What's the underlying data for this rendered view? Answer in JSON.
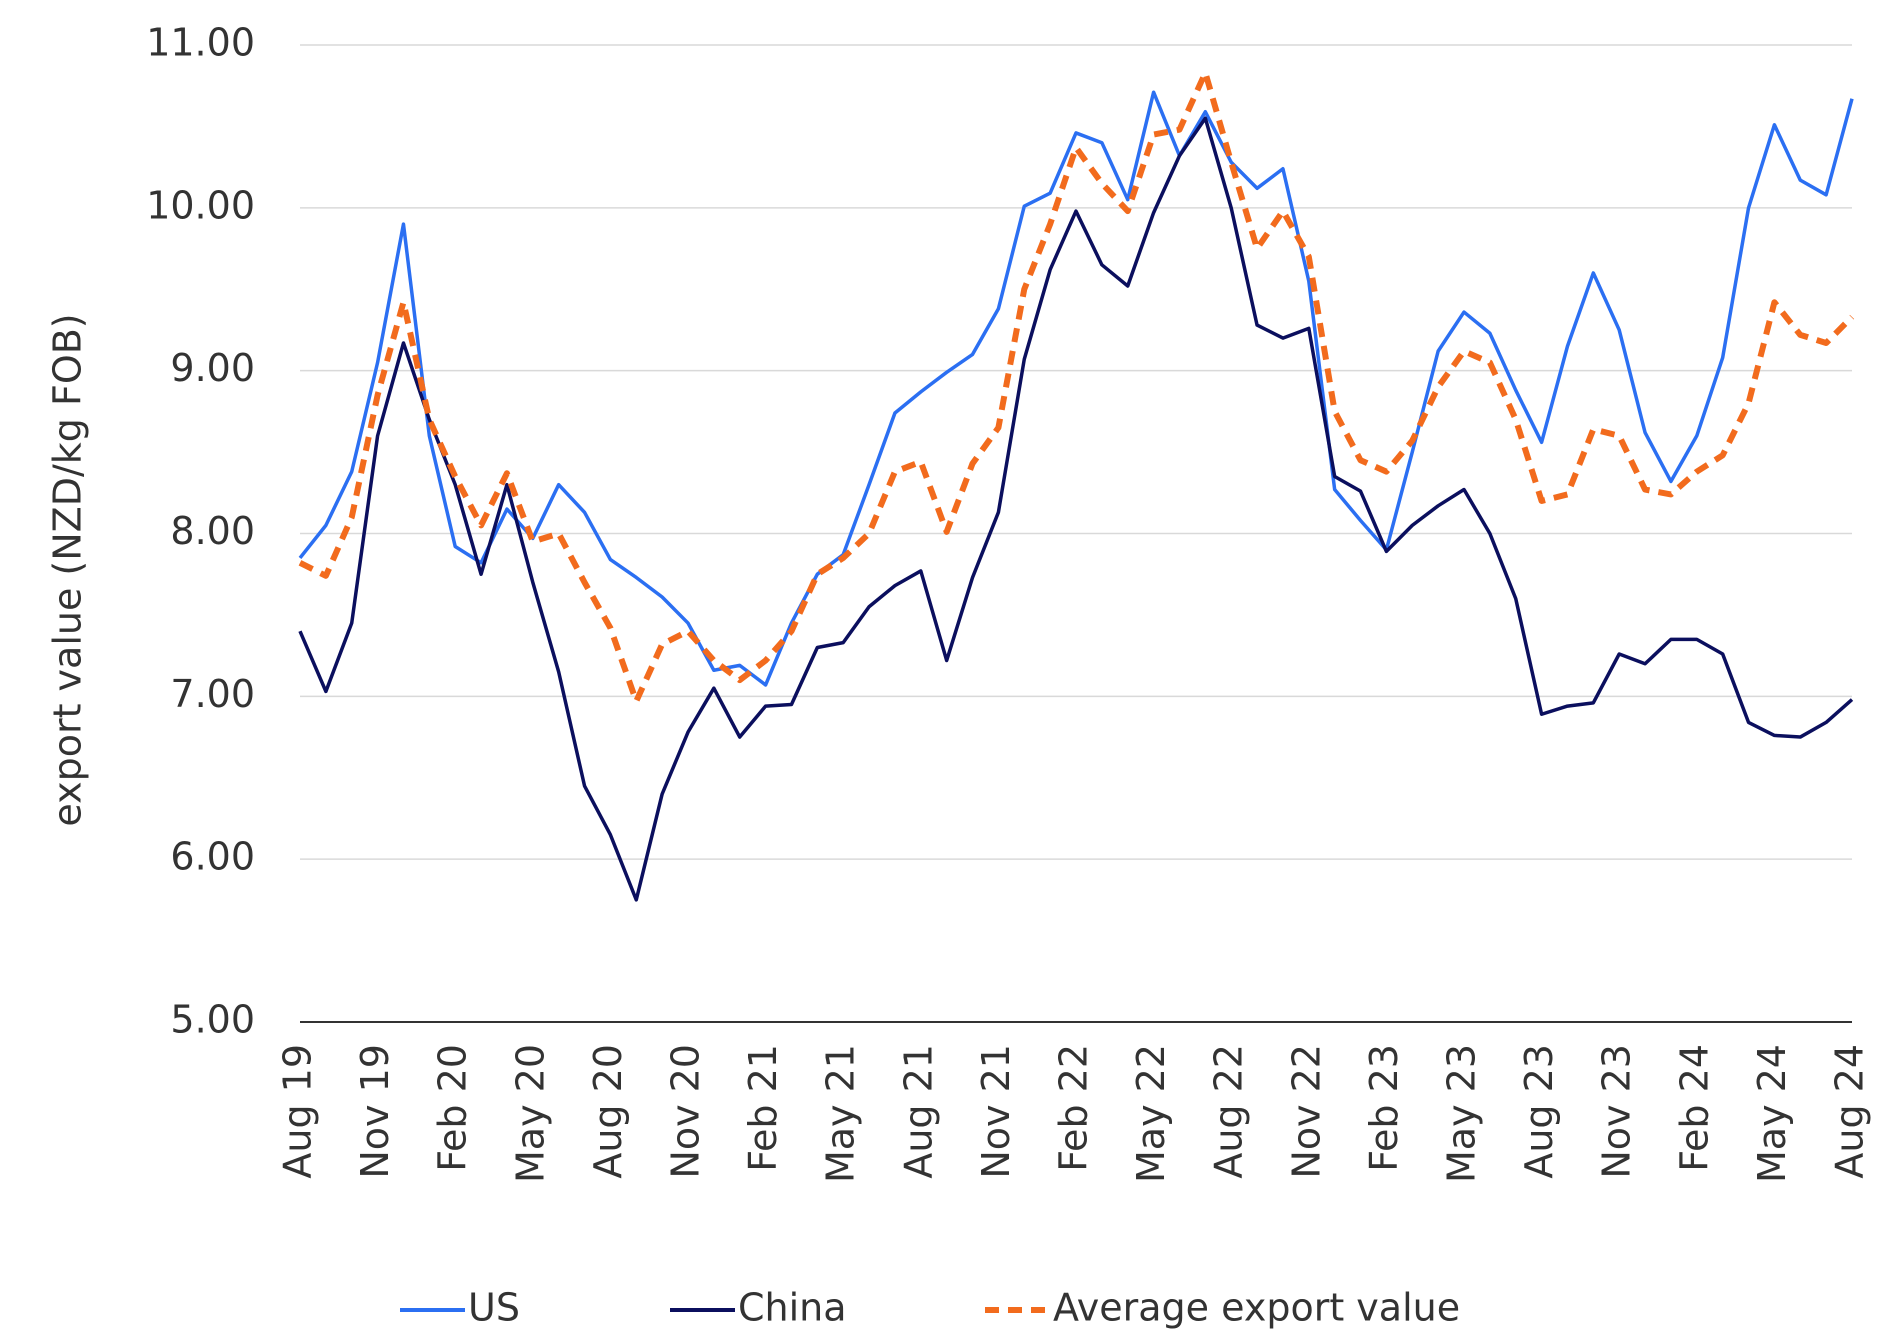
{
  "chart_data": {
    "type": "line",
    "y_label": "export value (NZD/kg FOB)",
    "categories": [
      "Aug 19",
      null,
      null,
      "Nov 19",
      null,
      null,
      "Feb 20",
      null,
      null,
      "May 20",
      null,
      null,
      "Aug 20",
      null,
      null,
      "Nov 20",
      null,
      null,
      "Feb 21",
      null,
      null,
      "May 21",
      null,
      null,
      "Aug 21",
      null,
      null,
      "Nov 21",
      null,
      null,
      "Feb 22",
      null,
      null,
      "May 22",
      null,
      null,
      "Aug 22",
      null,
      null,
      "Nov 22",
      null,
      null,
      "Feb 23",
      null,
      null,
      "May 23",
      null,
      null,
      "Aug 23",
      null,
      null,
      "Nov 23",
      null,
      null,
      "Feb 24",
      null,
      null,
      "May 24",
      null,
      null,
      "Aug 24"
    ],
    "series": [
      {
        "name": "US",
        "color": "#2b6ff2",
        "dashed": false,
        "values": [
          7.85,
          8.05,
          8.38,
          9.05,
          9.9,
          8.6,
          7.92,
          7.82,
          8.15,
          7.97,
          8.3,
          8.13,
          7.84,
          7.73,
          7.61,
          7.45,
          7.16,
          7.19,
          7.07,
          7.45,
          7.75,
          7.87,
          8.3,
          8.74,
          8.87,
          8.99,
          9.1,
          9.38,
          10.01,
          10.09,
          10.46,
          10.4,
          10.05,
          10.71,
          10.32,
          10.59,
          10.28,
          10.12,
          10.24,
          9.55,
          8.27,
          8.08,
          7.9,
          8.5,
          9.12,
          9.36,
          9.23,
          8.88,
          8.56,
          9.15,
          9.6,
          9.25,
          8.62,
          8.32,
          8.6,
          9.08,
          10.0,
          10.51,
          10.17,
          10.08,
          10.67
        ]
      },
      {
        "name": "China",
        "color": "#0b0f5e",
        "dashed": false,
        "values": [
          7.4,
          7.03,
          7.45,
          8.6,
          9.17,
          8.7,
          8.3,
          7.75,
          8.3,
          7.7,
          7.15,
          6.45,
          6.15,
          5.75,
          6.4,
          6.78,
          7.05,
          6.75,
          6.94,
          6.95,
          7.3,
          7.33,
          7.55,
          7.68,
          7.77,
          7.22,
          7.73,
          8.13,
          9.07,
          9.62,
          9.98,
          9.65,
          9.52,
          9.97,
          10.32,
          10.55,
          10.0,
          9.28,
          9.2,
          9.26,
          8.35,
          8.26,
          7.89,
          8.05,
          8.17,
          8.27,
          8.0,
          7.6,
          6.89,
          6.94,
          6.96,
          7.26,
          7.2,
          7.35,
          7.35,
          7.26,
          6.84,
          6.76,
          6.75,
          6.84,
          6.98
        ]
      },
      {
        "name": "Average export value",
        "color": "#f26b1d",
        "dashed": true,
        "values": [
          7.82,
          7.74,
          8.1,
          8.85,
          9.42,
          8.7,
          8.35,
          8.05,
          8.37,
          7.95,
          8.0,
          7.7,
          7.42,
          6.97,
          7.32,
          7.4,
          7.22,
          7.1,
          7.22,
          7.4,
          7.75,
          7.85,
          8.0,
          8.38,
          8.44,
          8.01,
          8.43,
          8.65,
          9.5,
          9.9,
          10.37,
          10.15,
          9.98,
          10.45,
          10.48,
          10.83,
          10.28,
          9.75,
          9.98,
          9.7,
          8.75,
          8.45,
          8.38,
          8.57,
          8.9,
          9.12,
          9.05,
          8.7,
          8.2,
          8.24,
          8.64,
          8.6,
          8.27,
          8.24,
          8.38,
          8.48,
          8.8,
          9.42,
          9.22,
          9.17,
          9.33
        ]
      }
    ],
    "ylim": [
      5,
      11
    ],
    "yticks": [
      {
        "value": 5,
        "label": "5.00"
      },
      {
        "value": 6,
        "label": "6.00"
      },
      {
        "value": 7,
        "label": "7.00"
      },
      {
        "value": 8,
        "label": "8.00"
      },
      {
        "value": 9,
        "label": "9.00"
      },
      {
        "value": 10,
        "label": "10.00"
      },
      {
        "value": 11,
        "label": "11.00"
      }
    ],
    "grid": true,
    "legend": "bottom"
  }
}
